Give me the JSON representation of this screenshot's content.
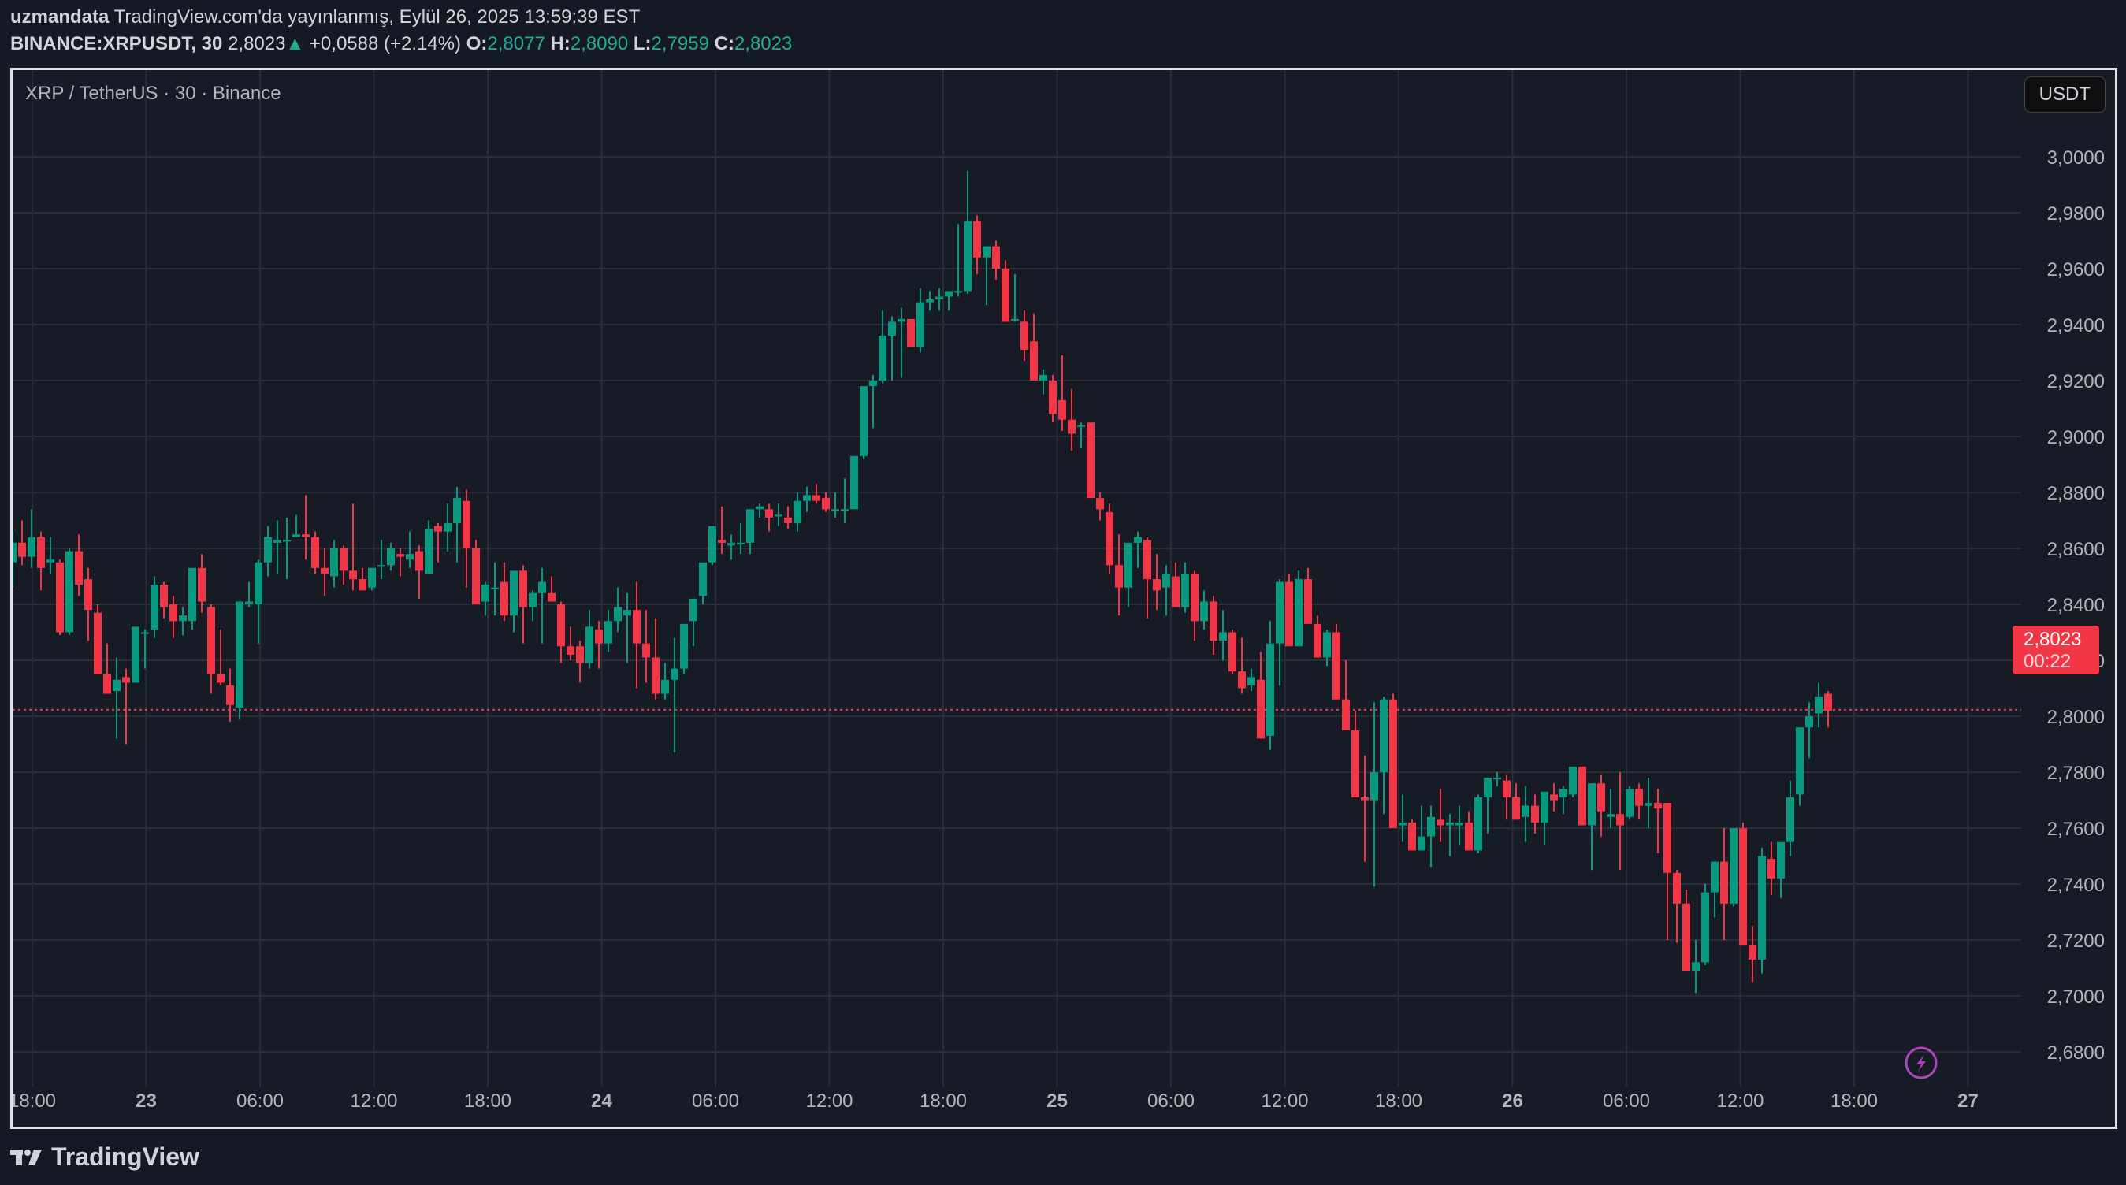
{
  "header": {
    "author": "uzmandata",
    "published": "TradingView.com'da yayınlanmış, Eylül 26, 2025 13:59:39 EST",
    "symbol": "BINANCE:XRPUSDT, 30",
    "last": "2,8023",
    "change": "+0,0588 (+2.14%)",
    "o_label": "O:",
    "o": "2,8077",
    "h_label": "H:",
    "h": "2,8090",
    "l_label": "L:",
    "l": "2,7959",
    "c_label": "C:",
    "c": "2,8023"
  },
  "chart": {
    "title": "XRP / TetherUS · 30 · Binance",
    "currency": "USDT",
    "price_tag": "2,8023",
    "countdown": "00:22",
    "logo": "TradingView"
  },
  "colors": {
    "up": "#089981",
    "down": "#f23645",
    "grid": "#2a2e39",
    "bg": "#171b26",
    "text": "#b2b5be"
  },
  "chart_data": {
    "type": "candlestick",
    "title": "XRP / TetherUS · 30 · Binance",
    "interval": "30m",
    "ylim": [
      2.67,
      3.015
    ],
    "y_ticks": [
      "3,0000",
      "2,9800",
      "2,9600",
      "2,9400",
      "2,9200",
      "2,9000",
      "2,8800",
      "2,8600",
      "2,8400",
      "2,8200",
      "2,8000",
      "2,7800",
      "2,7600",
      "2,7400",
      "2,7200",
      "2,7000",
      "2,6800"
    ],
    "x_ticks": [
      "18:00",
      "23",
      "06:00",
      "12:00",
      "18:00",
      "24",
      "06:00",
      "12:00",
      "18:00",
      "25",
      "06:00",
      "12:00",
      "18:00",
      "26",
      "06:00",
      "12:00",
      "18:00",
      "27"
    ],
    "last_price": 2.8023,
    "candles_ohlc": [
      [
        2.855,
        2.866,
        2.846,
        2.862
      ],
      [
        2.862,
        2.87,
        2.854,
        2.857
      ],
      [
        2.857,
        2.874,
        2.853,
        2.864
      ],
      [
        2.864,
        2.866,
        2.845,
        2.853
      ],
      [
        2.855,
        2.864,
        2.851,
        2.856
      ],
      [
        2.855,
        2.856,
        2.829,
        2.83
      ],
      [
        2.83,
        2.86,
        2.829,
        2.859
      ],
      [
        2.859,
        2.865,
        2.843,
        2.847
      ],
      [
        2.849,
        2.853,
        2.827,
        2.838
      ],
      [
        2.837,
        2.84,
        2.815,
        2.815
      ],
      [
        2.815,
        2.826,
        2.808,
        2.808
      ],
      [
        2.809,
        2.821,
        2.792,
        2.813
      ],
      [
        2.814,
        2.817,
        2.79,
        2.812
      ],
      [
        2.812,
        2.832,
        2.812,
        2.832
      ],
      [
        2.83,
        2.831,
        2.817,
        2.83
      ],
      [
        2.831,
        2.85,
        2.828,
        2.847
      ],
      [
        2.847,
        2.848,
        2.835,
        2.839
      ],
      [
        2.84,
        2.843,
        2.828,
        2.834
      ],
      [
        2.834,
        2.839,
        2.829,
        2.836
      ],
      [
        2.834,
        2.851,
        2.831,
        2.853
      ],
      [
        2.853,
        2.858,
        2.837,
        2.841
      ],
      [
        2.839,
        2.84,
        2.808,
        2.815
      ],
      [
        2.815,
        2.831,
        2.811,
        2.812
      ],
      [
        2.811,
        2.817,
        2.798,
        2.804
      ],
      [
        2.803,
        2.841,
        2.799,
        2.841
      ],
      [
        2.84,
        2.848,
        2.839,
        2.841
      ],
      [
        2.84,
        2.856,
        2.826,
        2.855
      ],
      [
        2.855,
        2.868,
        2.85,
        2.864
      ],
      [
        2.862,
        2.87,
        2.851,
        2.863
      ],
      [
        2.863,
        2.871,
        2.849,
        2.863
      ],
      [
        2.864,
        2.872,
        2.864,
        2.865
      ],
      [
        2.865,
        2.879,
        2.856,
        2.864
      ],
      [
        2.864,
        2.866,
        2.851,
        2.853
      ],
      [
        2.853,
        2.86,
        2.843,
        2.851
      ],
      [
        2.85,
        2.863,
        2.846,
        2.86
      ],
      [
        2.86,
        2.861,
        2.847,
        2.852
      ],
      [
        2.852,
        2.876,
        2.845,
        2.849
      ],
      [
        2.849,
        2.853,
        2.845,
        2.845
      ],
      [
        2.846,
        2.853,
        2.845,
        2.853
      ],
      [
        2.854,
        2.863,
        2.849,
        2.854
      ],
      [
        2.854,
        2.862,
        2.852,
        2.86
      ],
      [
        2.858,
        2.86,
        2.85,
        2.857
      ],
      [
        2.856,
        2.866,
        2.853,
        2.858
      ],
      [
        2.859,
        2.861,
        2.842,
        2.852
      ],
      [
        2.851,
        2.87,
        2.851,
        2.867
      ],
      [
        2.868,
        2.869,
        2.855,
        2.866
      ],
      [
        2.866,
        2.876,
        2.859,
        2.869
      ],
      [
        2.869,
        2.882,
        2.855,
        2.878
      ],
      [
        2.877,
        2.881,
        2.846,
        2.86
      ],
      [
        2.86,
        2.863,
        2.84,
        2.84
      ],
      [
        2.841,
        2.848,
        2.836,
        2.847
      ],
      [
        2.846,
        2.855,
        2.836,
        2.846
      ],
      [
        2.848,
        2.855,
        2.834,
        2.836
      ],
      [
        2.836,
        2.849,
        2.83,
        2.852
      ],
      [
        2.852,
        2.854,
        2.826,
        2.839
      ],
      [
        2.839,
        2.845,
        2.834,
        2.844
      ],
      [
        2.844,
        2.853,
        2.826,
        2.848
      ],
      [
        2.844,
        2.85,
        2.841,
        2.841
      ],
      [
        2.84,
        2.841,
        2.819,
        2.825
      ],
      [
        2.825,
        2.832,
        2.82,
        2.822
      ],
      [
        2.825,
        2.827,
        2.812,
        2.819
      ],
      [
        2.819,
        2.838,
        2.817,
        2.832
      ],
      [
        2.831,
        2.834,
        2.817,
        2.826
      ],
      [
        2.826,
        2.838,
        2.823,
        2.834
      ],
      [
        2.834,
        2.846,
        2.83,
        2.839
      ],
      [
        2.836,
        2.844,
        2.819,
        2.838
      ],
      [
        2.838,
        2.848,
        2.81,
        2.826
      ],
      [
        2.826,
        2.838,
        2.812,
        2.821
      ],
      [
        2.821,
        2.835,
        2.806,
        2.808
      ],
      [
        2.808,
        2.819,
        2.806,
        2.813
      ],
      [
        2.813,
        2.828,
        2.787,
        2.817
      ],
      [
        2.817,
        2.833,
        2.815,
        2.833
      ],
      [
        2.834,
        2.84,
        2.825,
        2.842
      ],
      [
        2.843,
        2.846,
        2.84,
        2.855
      ],
      [
        2.855,
        2.863,
        2.854,
        2.868
      ],
      [
        2.863,
        2.875,
        2.858,
        2.862
      ],
      [
        2.861,
        2.865,
        2.856,
        2.862
      ],
      [
        2.862,
        2.869,
        2.858,
        2.862
      ],
      [
        2.862,
        2.873,
        2.858,
        2.874
      ],
      [
        2.874,
        2.876,
        2.871,
        2.875
      ],
      [
        2.874,
        2.876,
        2.866,
        2.871
      ],
      [
        2.872,
        2.876,
        2.868,
        2.872
      ],
      [
        2.871,
        2.875,
        2.867,
        2.869
      ],
      [
        2.869,
        2.88,
        2.866,
        2.877
      ],
      [
        2.877,
        2.882,
        2.873,
        2.879
      ],
      [
        2.879,
        2.883,
        2.876,
        2.877
      ],
      [
        2.878,
        2.88,
        2.873,
        2.874
      ],
      [
        2.874,
        2.88,
        2.871,
        2.874
      ],
      [
        2.874,
        2.885,
        2.869,
        2.874
      ],
      [
        2.874,
        2.893,
        2.874,
        2.893
      ],
      [
        2.893,
        2.915,
        2.892,
        2.918
      ],
      [
        2.918,
        2.922,
        2.903,
        2.92
      ],
      [
        2.92,
        2.945,
        2.919,
        2.936
      ],
      [
        2.936,
        2.943,
        2.92,
        2.941
      ],
      [
        2.941,
        2.946,
        2.921,
        2.942
      ],
      [
        2.942,
        2.938,
        2.934,
        2.932
      ],
      [
        2.932,
        2.953,
        2.93,
        2.948
      ],
      [
        2.948,
        2.952,
        2.945,
        2.949
      ],
      [
        2.949,
        2.953,
        2.945,
        2.95
      ],
      [
        2.95,
        2.951,
        2.945,
        2.952
      ],
      [
        2.952,
        2.976,
        2.95,
        2.952
      ],
      [
        2.952,
        2.995,
        2.951,
        2.977
      ],
      [
        2.977,
        2.979,
        2.958,
        2.964
      ],
      [
        2.964,
        2.966,
        2.947,
        2.968
      ],
      [
        2.968,
        2.97,
        2.956,
        2.96
      ],
      [
        2.96,
        2.963,
        2.941,
        2.941
      ],
      [
        2.942,
        2.958,
        2.941,
        2.942
      ],
      [
        2.941,
        2.945,
        2.927,
        2.931
      ],
      [
        2.934,
        2.944,
        2.92,
        2.92
      ],
      [
        2.92,
        2.924,
        2.915,
        2.922
      ],
      [
        2.92,
        2.922,
        2.905,
        2.908
      ],
      [
        2.913,
        2.929,
        2.902,
        2.906
      ],
      [
        2.906,
        2.917,
        2.895,
        2.901
      ],
      [
        2.904,
        2.905,
        2.896,
        2.904
      ],
      [
        2.905,
        2.903,
        2.883,
        2.878
      ],
      [
        2.878,
        2.88,
        2.87,
        2.874
      ],
      [
        2.873,
        2.876,
        2.851,
        2.854
      ],
      [
        2.854,
        2.865,
        2.836,
        2.846
      ],
      [
        2.846,
        2.86,
        2.839,
        2.862
      ],
      [
        2.862,
        2.866,
        2.853,
        2.864
      ],
      [
        2.863,
        2.864,
        2.835,
        2.849
      ],
      [
        2.849,
        2.858,
        2.838,
        2.845
      ],
      [
        2.846,
        2.854,
        2.836,
        2.851
      ],
      [
        2.85,
        2.855,
        2.841,
        2.839
      ],
      [
        2.839,
        2.855,
        2.837,
        2.851
      ],
      [
        2.851,
        2.852,
        2.827,
        2.834
      ],
      [
        2.834,
        2.845,
        2.831,
        2.841
      ],
      [
        2.841,
        2.843,
        2.822,
        2.827
      ],
      [
        2.827,
        2.838,
        2.82,
        2.83
      ],
      [
        2.83,
        2.831,
        2.815,
        2.816
      ],
      [
        2.816,
        2.828,
        2.808,
        2.81
      ],
      [
        2.811,
        2.817,
        2.809,
        2.814
      ],
      [
        2.813,
        2.823,
        2.792,
        2.792
      ],
      [
        2.793,
        2.834,
        2.788,
        2.826
      ],
      [
        2.826,
        2.849,
        2.811,
        2.848
      ],
      [
        2.848,
        2.851,
        2.826,
        2.825
      ],
      [
        2.825,
        2.852,
        2.825,
        2.849
      ],
      [
        2.849,
        2.853,
        2.833,
        2.833
      ],
      [
        2.833,
        2.836,
        2.821,
        2.821
      ],
      [
        2.821,
        2.831,
        2.818,
        2.83
      ],
      [
        2.83,
        2.833,
        2.808,
        2.806
      ],
      [
        2.806,
        2.82,
        2.795,
        2.795
      ],
      [
        2.795,
        2.802,
        2.771,
        2.771
      ],
      [
        2.771,
        2.786,
        2.748,
        2.77
      ],
      [
        2.77,
        2.805,
        2.739,
        2.78
      ],
      [
        2.78,
        2.807,
        2.765,
        2.806
      ],
      [
        2.806,
        2.808,
        2.769,
        2.76
      ],
      [
        2.761,
        2.772,
        2.755,
        2.762
      ],
      [
        2.762,
        2.763,
        2.752,
        2.752
      ],
      [
        2.752,
        2.768,
        2.752,
        2.757
      ],
      [
        2.757,
        2.768,
        2.746,
        2.764
      ],
      [
        2.763,
        2.774,
        2.755,
        2.761
      ],
      [
        2.761,
        2.765,
        2.75,
        2.762
      ],
      [
        2.761,
        2.768,
        2.754,
        2.762
      ],
      [
        2.762,
        2.766,
        2.752,
        2.752
      ],
      [
        2.752,
        2.772,
        2.751,
        2.771
      ],
      [
        2.771,
        2.778,
        2.758,
        2.778
      ],
      [
        2.778,
        2.78,
        2.775,
        2.778
      ],
      [
        2.777,
        2.779,
        2.763,
        2.771
      ],
      [
        2.771,
        2.776,
        2.763,
        2.763
      ],
      [
        2.764,
        2.775,
        2.755,
        2.768
      ],
      [
        2.768,
        2.772,
        2.758,
        2.762
      ],
      [
        2.762,
        2.765,
        2.754,
        2.773
      ],
      [
        2.772,
        2.776,
        2.766,
        2.77
      ],
      [
        2.771,
        2.775,
        2.765,
        2.774
      ],
      [
        2.772,
        2.782,
        2.771,
        2.782
      ],
      [
        2.782,
        2.782,
        2.761,
        2.761
      ],
      [
        2.761,
        2.774,
        2.745,
        2.776
      ],
      [
        2.776,
        2.779,
        2.757,
        2.766
      ],
      [
        2.764,
        2.774,
        2.76,
        2.765
      ],
      [
        2.765,
        2.78,
        2.745,
        2.761
      ],
      [
        2.764,
        2.775,
        2.763,
        2.774
      ],
      [
        2.774,
        2.776,
        2.763,
        2.768
      ],
      [
        2.768,
        2.778,
        2.76,
        2.769
      ],
      [
        2.769,
        2.774,
        2.751,
        2.767
      ],
      [
        2.769,
        2.768,
        2.72,
        2.744
      ],
      [
        2.744,
        2.745,
        2.719,
        2.733
      ],
      [
        2.733,
        2.738,
        2.712,
        2.709
      ],
      [
        2.709,
        2.72,
        2.701,
        2.712
      ],
      [
        2.712,
        2.74,
        2.711,
        2.737
      ],
      [
        2.737,
        2.748,
        2.728,
        2.748
      ],
      [
        2.748,
        2.76,
        2.72,
        2.733
      ],
      [
        2.733,
        2.76,
        2.732,
        2.76
      ],
      [
        2.76,
        2.762,
        2.718,
        2.718
      ],
      [
        2.718,
        2.725,
        2.705,
        2.713
      ],
      [
        2.713,
        2.753,
        2.708,
        2.75
      ],
      [
        2.749,
        2.755,
        2.736,
        2.742
      ],
      [
        2.742,
        2.753,
        2.735,
        2.755
      ],
      [
        2.755,
        2.777,
        2.75,
        2.771
      ],
      [
        2.772,
        2.788,
        2.768,
        2.796
      ],
      [
        2.796,
        2.805,
        2.785,
        2.8
      ],
      [
        2.801,
        2.812,
        2.796,
        2.807
      ],
      [
        2.808,
        2.809,
        2.796,
        2.802
      ]
    ]
  }
}
